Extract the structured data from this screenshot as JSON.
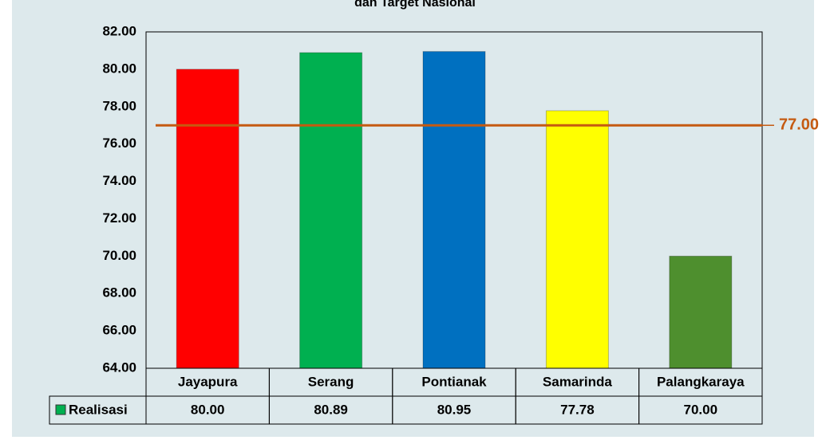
{
  "chart_data": {
    "type": "bar",
    "title": "dan Target Nasional",
    "categories": [
      "Jayapura",
      "Serang",
      "Pontianak",
      "Samarinda",
      "Palangkaraya"
    ],
    "series": [
      {
        "name": "Realisasi",
        "color": "#00b050",
        "colors": [
          "#ff0000",
          "#00b050",
          "#0070c0",
          "#ffff00",
          "#4e8f2e"
        ],
        "values": [
          80,
          80.89,
          80.95,
          77.78,
          70
        ],
        "value_labels": [
          "80.00",
          "80.89",
          "80.95",
          "77.78",
          "70.00"
        ]
      }
    ],
    "target": {
      "value": 77,
      "label": "77.00",
      "color": "#c55a11"
    },
    "ylim": [
      64,
      82
    ],
    "yticks": [
      {
        "value": 64,
        "label": "64.00"
      },
      {
        "value": 66,
        "label": "66.00"
      },
      {
        "value": 68,
        "label": "68.00"
      },
      {
        "value": 70,
        "label": "70.00"
      },
      {
        "value": 72,
        "label": "72.00"
      },
      {
        "value": 74,
        "label": "74.00"
      },
      {
        "value": 76,
        "label": "76.00"
      },
      {
        "value": 78,
        "label": "78.00"
      },
      {
        "value": 80,
        "label": "80.00"
      },
      {
        "value": 82,
        "label": "82.00"
      }
    ],
    "grid": false
  }
}
